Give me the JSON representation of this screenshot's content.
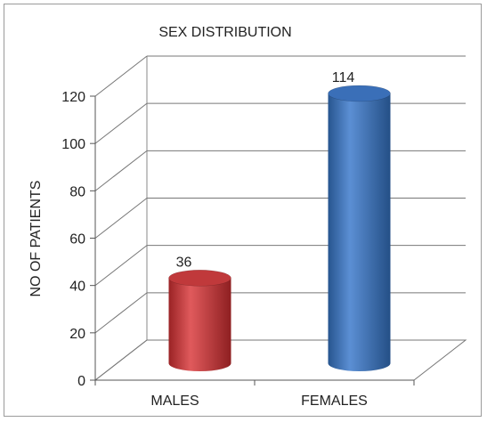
{
  "chart_data": {
    "type": "bar",
    "style": "3d-cylinder",
    "title": "SEX DISTRIBUTION",
    "xlabel": "",
    "ylabel": "NO OF PATIENTS",
    "categories": [
      "MALES",
      "FEMALES"
    ],
    "values": [
      36,
      114
    ],
    "data_labels": [
      "36",
      "114"
    ],
    "ylim": [
      0,
      120
    ],
    "yticks": [
      0,
      20,
      40,
      60,
      80,
      100,
      120
    ],
    "grid": true,
    "legend": "none",
    "colors": [
      "#c0393b",
      "#3a6fb8"
    ]
  }
}
